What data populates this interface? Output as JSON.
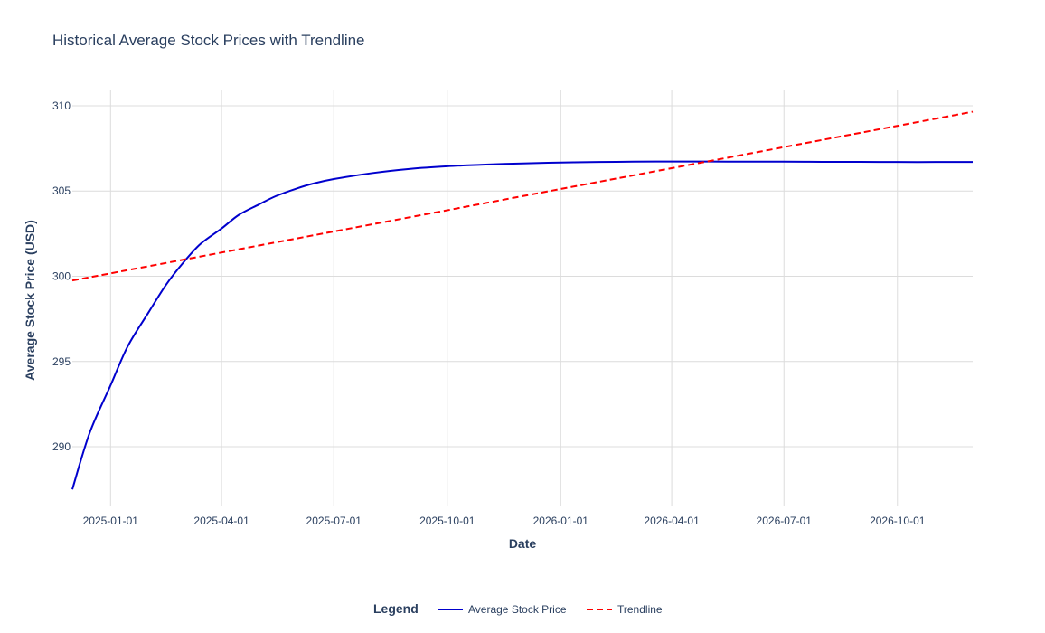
{
  "chart_data": {
    "type": "line",
    "title": "Historical Average Stock Prices with Trendline",
    "xlabel": "Date",
    "ylabel": "Average Stock Price (USD)",
    "x_range": [
      "2024-12-01",
      "2026-12-01"
    ],
    "ylim": [
      286.5,
      310.9
    ],
    "grid": true,
    "legend_position": "bottom-center",
    "legend_title": "Legend",
    "x_ticks": [
      "2025-01-01",
      "2025-04-01",
      "2025-07-01",
      "2025-10-01",
      "2026-01-01",
      "2026-04-01",
      "2026-07-01",
      "2026-10-01"
    ],
    "y_ticks": [
      290,
      295,
      300,
      305,
      310
    ],
    "series": [
      {
        "name": "Average Stock Price",
        "color": "#0000cd",
        "dash": "solid",
        "points": [
          {
            "x": "2024-12-01",
            "y": 287.5
          },
          {
            "x": "2024-12-15",
            "y": 290.8
          },
          {
            "x": "2025-01-01",
            "y": 293.6
          },
          {
            "x": "2025-01-15",
            "y": 295.9
          },
          {
            "x": "2025-02-01",
            "y": 297.9
          },
          {
            "x": "2025-02-15",
            "y": 299.5
          },
          {
            "x": "2025-03-01",
            "y": 300.8
          },
          {
            "x": "2025-03-15",
            "y": 301.9
          },
          {
            "x": "2025-04-01",
            "y": 302.8
          },
          {
            "x": "2025-04-15",
            "y": 303.6
          },
          {
            "x": "2025-05-01",
            "y": 304.2
          },
          {
            "x": "2025-05-15",
            "y": 304.7
          },
          {
            "x": "2025-06-01",
            "y": 305.15
          },
          {
            "x": "2025-06-15",
            "y": 305.45
          },
          {
            "x": "2025-07-01",
            "y": 305.7
          },
          {
            "x": "2025-08-01",
            "y": 306.05
          },
          {
            "x": "2025-09-01",
            "y": 306.3
          },
          {
            "x": "2025-10-01",
            "y": 306.45
          },
          {
            "x": "2025-11-01",
            "y": 306.55
          },
          {
            "x": "2025-12-01",
            "y": 306.62
          },
          {
            "x": "2026-01-01",
            "y": 306.67
          },
          {
            "x": "2026-02-01",
            "y": 306.7
          },
          {
            "x": "2026-03-01",
            "y": 306.72
          },
          {
            "x": "2026-04-01",
            "y": 306.73
          },
          {
            "x": "2026-05-01",
            "y": 306.73
          },
          {
            "x": "2026-06-01",
            "y": 306.72
          },
          {
            "x": "2026-07-01",
            "y": 306.72
          },
          {
            "x": "2026-08-01",
            "y": 306.71
          },
          {
            "x": "2026-09-01",
            "y": 306.71
          },
          {
            "x": "2026-10-01",
            "y": 306.7
          },
          {
            "x": "2026-11-01",
            "y": 306.7
          },
          {
            "x": "2026-12-01",
            "y": 306.7
          }
        ]
      },
      {
        "name": "Trendline",
        "color": "#ff0000",
        "dash": "dashed",
        "points": [
          {
            "x": "2024-12-01",
            "y": 299.75
          },
          {
            "x": "2026-12-01",
            "y": 309.65
          }
        ]
      }
    ]
  }
}
